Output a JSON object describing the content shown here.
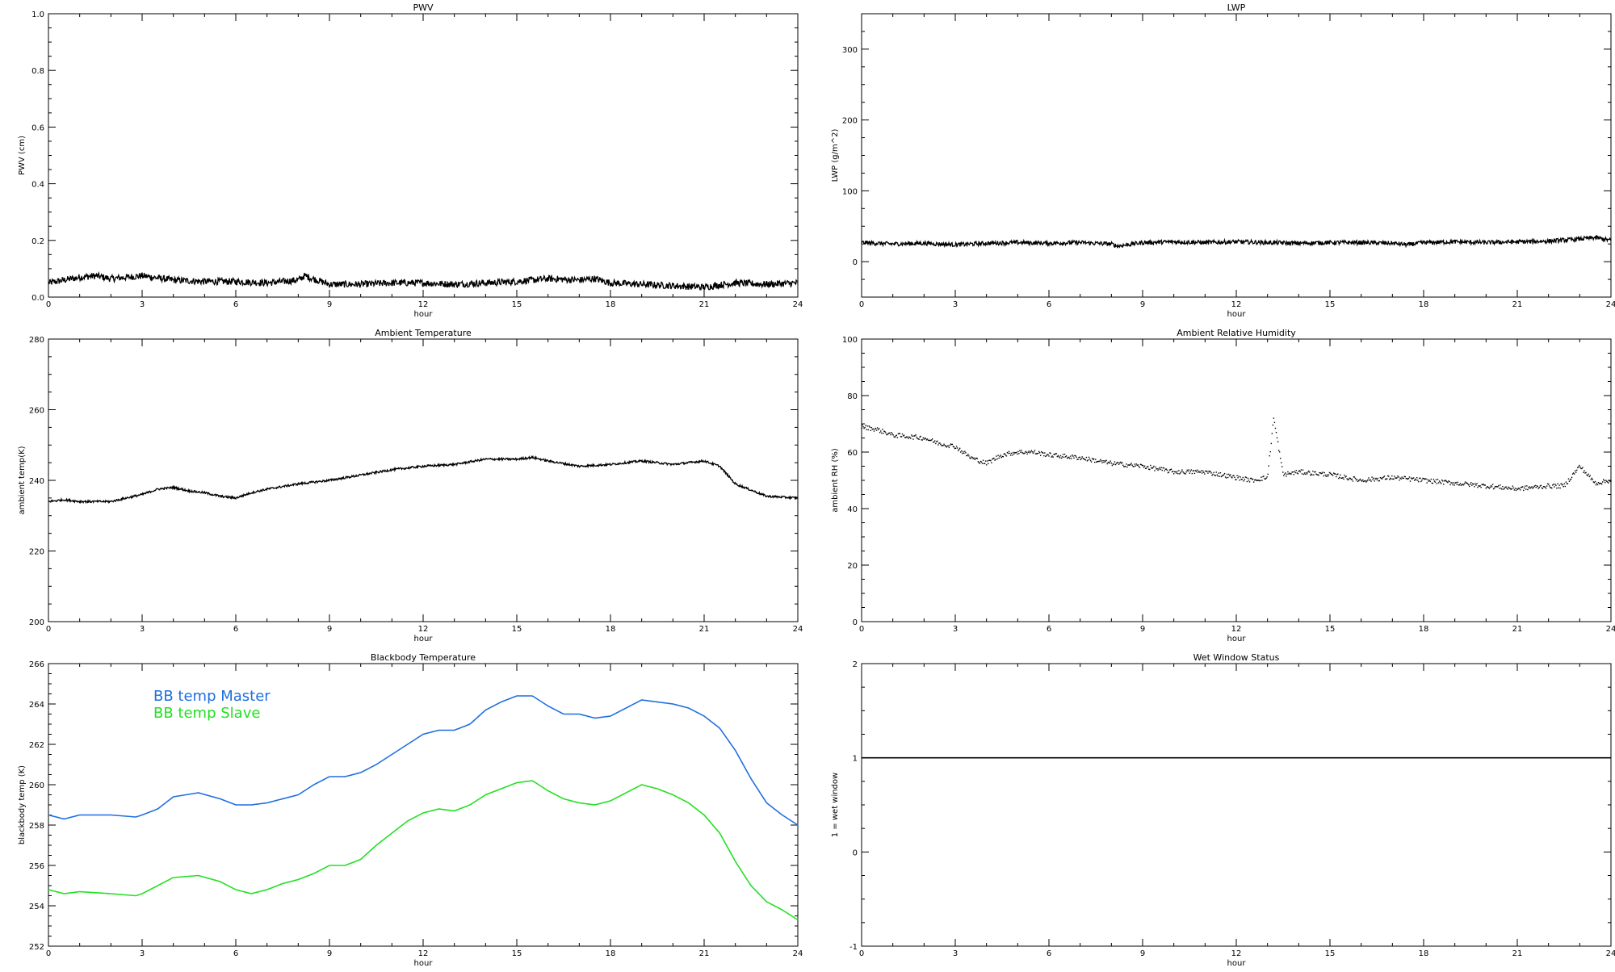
{
  "chart_data": [
    {
      "type": "line",
      "title": "PWV",
      "xlabel": "hour",
      "ylabel": "PWV (cm)",
      "xlim": [
        0,
        24
      ],
      "ylim": [
        0,
        1.0
      ],
      "xticks": [
        "0",
        "3",
        "6",
        "9",
        "12",
        "15",
        "18",
        "21",
        "24"
      ],
      "yticks": [
        "0.0",
        "0.2",
        "0.4",
        "0.6",
        "0.8",
        "1.0"
      ],
      "noise": 0.012,
      "series": [
        {
          "color": "#000000",
          "x": [
            0,
            1,
            1.5,
            2,
            3,
            4,
            5,
            6,
            7,
            8,
            8.2,
            9,
            10,
            11,
            12,
            13,
            14,
            15,
            16,
            17,
            17.5,
            18,
            19,
            20,
            21,
            22,
            23,
            24
          ],
          "values": [
            0.05,
            0.07,
            0.075,
            0.065,
            0.075,
            0.06,
            0.055,
            0.055,
            0.05,
            0.06,
            0.075,
            0.045,
            0.045,
            0.05,
            0.05,
            0.045,
            0.05,
            0.055,
            0.065,
            0.06,
            0.065,
            0.05,
            0.045,
            0.04,
            0.035,
            0.05,
            0.045,
            0.05
          ]
        }
      ]
    },
    {
      "type": "line",
      "title": "LWP",
      "xlabel": "hour",
      "ylabel": "LWP (g/m^2)",
      "xlim": [
        0,
        24
      ],
      "ylim": [
        -50,
        350
      ],
      "xticks": [
        "0",
        "3",
        "6",
        "9",
        "12",
        "15",
        "18",
        "21",
        "24"
      ],
      "yticks": [
        "0",
        "100",
        "200",
        "300"
      ],
      "noise": 3,
      "series": [
        {
          "color": "#000000",
          "x": [
            0,
            1,
            2,
            3,
            4,
            5,
            6,
            7,
            8,
            8.2,
            9,
            10,
            11,
            12,
            13,
            14,
            15,
            16,
            17,
            17.5,
            18,
            19,
            20,
            21,
            22,
            23,
            23.5,
            24
          ],
          "values": [
            27,
            25,
            26,
            24,
            26,
            27,
            26,
            27,
            25,
            22,
            27,
            28,
            27,
            28,
            27,
            26,
            27,
            27,
            26,
            24,
            27,
            28,
            27,
            28,
            29,
            32,
            34,
            30
          ]
        }
      ]
    },
    {
      "type": "line",
      "title": "Ambient Temperature",
      "xlabel": "hour",
      "ylabel": "ambient temp(K)",
      "xlim": [
        0,
        24
      ],
      "ylim": [
        200,
        280
      ],
      "xticks": [
        "0",
        "3",
        "6",
        "9",
        "12",
        "15",
        "18",
        "21",
        "24"
      ],
      "yticks": [
        "200",
        "220",
        "240",
        "260",
        "280"
      ],
      "noise": 0.3,
      "series": [
        {
          "color": "#000000",
          "x": [
            0,
            0.5,
            1,
            2,
            2.5,
            3,
            3.5,
            4,
            4.5,
            5,
            5.5,
            6,
            6.5,
            7,
            8,
            9,
            10,
            11,
            12,
            13,
            14,
            15,
            15.5,
            16,
            17,
            18,
            19,
            20,
            21,
            21.5,
            22,
            23,
            24
          ],
          "values": [
            234,
            234.5,
            234,
            234,
            235,
            236,
            237.5,
            238,
            237,
            236.5,
            235.5,
            235,
            236.5,
            237.5,
            239,
            240,
            241.5,
            243,
            244,
            244.5,
            246,
            246,
            246.5,
            245.5,
            244,
            244.5,
            245.5,
            244.5,
            245.5,
            244,
            239,
            235.5,
            235
          ]
        }
      ]
    },
    {
      "type": "scatter",
      "title": "Ambient Relative Humidity",
      "xlabel": "hour",
      "ylabel": "ambient RH (%)",
      "xlim": [
        0,
        24
      ],
      "ylim": [
        0,
        100
      ],
      "xticks": [
        "0",
        "3",
        "6",
        "9",
        "12",
        "15",
        "18",
        "21",
        "24"
      ],
      "yticks": [
        "0",
        "20",
        "40",
        "60",
        "80",
        "100"
      ],
      "noise": 0.8,
      "series": [
        {
          "color": "#000000",
          "x": [
            0,
            0.5,
            1,
            2,
            2.5,
            3,
            3.5,
            4,
            4.5,
            5,
            5.5,
            6,
            7,
            8,
            9,
            10,
            11,
            12,
            12.5,
            13,
            13.2,
            13.5,
            14,
            15,
            15.5,
            16,
            17,
            18,
            19,
            20,
            21,
            22,
            22.5,
            23,
            23.5,
            24
          ],
          "values": [
            69,
            68,
            66,
            65,
            63,
            62,
            58,
            56,
            59,
            60,
            60,
            59,
            58,
            56,
            55,
            53,
            53,
            51,
            50,
            51,
            72,
            52,
            53,
            52,
            51,
            50,
            51,
            50,
            49,
            48,
            47,
            48,
            48,
            55,
            49,
            50
          ]
        }
      ]
    },
    {
      "type": "line",
      "title": "Blackbody Temperature",
      "xlabel": "hour",
      "ylabel": "blackbody temp (K)",
      "xlim": [
        0,
        24
      ],
      "ylim": [
        252,
        266
      ],
      "xticks": [
        "0",
        "3",
        "6",
        "9",
        "12",
        "15",
        "18",
        "21",
        "24"
      ],
      "yticks": [
        "252",
        "254",
        "256",
        "258",
        "260",
        "262",
        "264",
        "266"
      ],
      "noise": 0,
      "legend": [
        "BB temp Master",
        "BB temp Slave"
      ],
      "series": [
        {
          "name": "BB temp Master",
          "color": "#1f6fe0",
          "x": [
            0,
            0.5,
            1,
            2,
            2.8,
            3,
            3.5,
            4,
            4.8,
            5.5,
            6,
            6.5,
            7,
            7.5,
            8,
            8.5,
            9,
            9.5,
            10,
            10.5,
            11,
            11.5,
            12,
            12.5,
            13,
            13.5,
            14,
            14.5,
            15,
            15.5,
            16,
            16.5,
            17,
            17.5,
            18,
            18.5,
            19,
            19.5,
            20,
            20.5,
            21,
            21.5,
            22,
            22.5,
            23,
            23.5,
            24
          ],
          "values": [
            258.5,
            258.3,
            258.5,
            258.5,
            258.4,
            258.5,
            258.8,
            259.4,
            259.6,
            259.3,
            259.0,
            259.0,
            259.1,
            259.3,
            259.5,
            260.0,
            260.4,
            260.4,
            260.6,
            261.0,
            261.5,
            262.0,
            262.5,
            262.7,
            262.7,
            263.0,
            263.7,
            264.1,
            264.4,
            264.4,
            263.9,
            263.5,
            263.5,
            263.3,
            263.4,
            263.8,
            264.2,
            264.1,
            264.0,
            263.8,
            263.4,
            262.8,
            261.7,
            260.3,
            259.1,
            258.5,
            258.0
          ]
        },
        {
          "name": "BB temp Slave",
          "color": "#22e022",
          "x": [
            0,
            0.5,
            1,
            2,
            2.8,
            3,
            3.5,
            4,
            4.8,
            5.5,
            6,
            6.5,
            7,
            7.5,
            8,
            8.5,
            9,
            9.5,
            10,
            10.5,
            11,
            11.5,
            12,
            12.5,
            13,
            13.5,
            14,
            14.5,
            15,
            15.5,
            16,
            16.5,
            17,
            17.5,
            18,
            18.5,
            19,
            19.5,
            20,
            20.5,
            21,
            21.5,
            22,
            22.5,
            23,
            23.5,
            24
          ],
          "values": [
            254.8,
            254.6,
            254.7,
            254.6,
            254.5,
            254.6,
            255.0,
            255.4,
            255.5,
            255.2,
            254.8,
            254.6,
            254.8,
            255.1,
            255.3,
            255.6,
            256.0,
            256.0,
            256.3,
            257.0,
            257.6,
            258.2,
            258.6,
            258.8,
            258.7,
            259.0,
            259.5,
            259.8,
            260.1,
            260.2,
            259.7,
            259.3,
            259.1,
            259.0,
            259.2,
            259.6,
            260.0,
            259.8,
            259.5,
            259.1,
            258.5,
            257.6,
            256.2,
            255.0,
            254.2,
            253.8,
            253.3
          ]
        }
      ]
    },
    {
      "type": "line",
      "title": "Wet Window Status",
      "xlabel": "hour",
      "ylabel": "1 = wet window",
      "xlim": [
        0,
        24
      ],
      "ylim": [
        -1,
        2
      ],
      "xticks": [
        "0",
        "3",
        "6",
        "9",
        "12",
        "15",
        "18",
        "21",
        "24"
      ],
      "yticks": [
        "-1",
        "0",
        "1",
        "2"
      ],
      "noise": 0,
      "series": [
        {
          "color": "#000000",
          "x": [
            0,
            24
          ],
          "values": [
            1,
            1
          ]
        }
      ]
    }
  ]
}
